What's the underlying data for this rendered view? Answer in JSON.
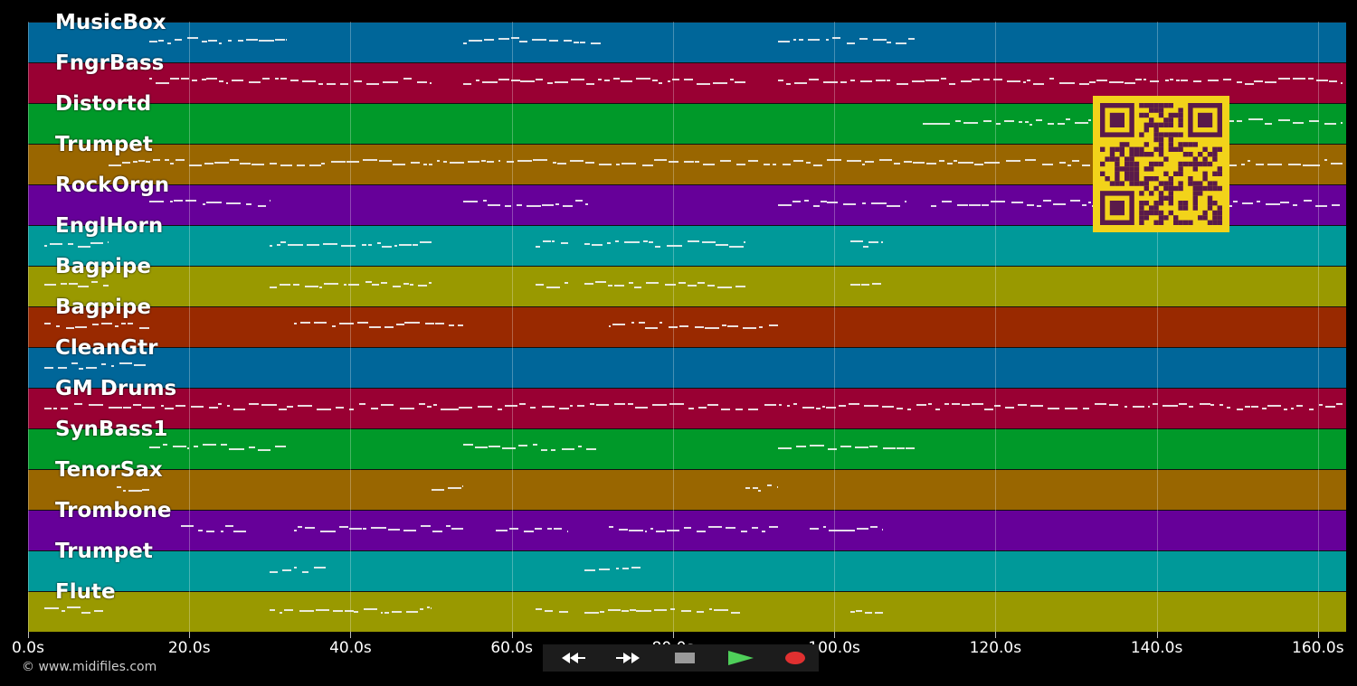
{
  "app": {
    "title": "MusicBox"
  },
  "tracks": [
    {
      "name": "MusicBox",
      "color": "#006699"
    },
    {
      "name": "FngrBass",
      "color": "#990033"
    },
    {
      "name": "Distortd",
      "color": "#009929"
    },
    {
      "name": "Trumpet",
      "color": "#996600"
    },
    {
      "name": "RockOrgn",
      "color": "#660099"
    },
    {
      "name": "EnglHorn",
      "color": "#009999"
    },
    {
      "name": "Bagpipe",
      "color": "#999900"
    },
    {
      "name": "Bagpipe",
      "color": "#992900"
    },
    {
      "name": "CleanGtr",
      "color": "#006699"
    },
    {
      "name": "GM Drums",
      "color": "#990033"
    },
    {
      "name": "SynBass1",
      "color": "#009929"
    },
    {
      "name": "TenorSax",
      "color": "#996600"
    },
    {
      "name": "Trombone",
      "color": "#660099"
    },
    {
      "name": "Trumpet",
      "color": "#009999"
    },
    {
      "name": "Flute",
      "color": "#999900"
    }
  ],
  "timeline": {
    "unit": "s",
    "max_seconds": 163.5,
    "ticks": [
      "0.0s",
      "20.0s",
      "40.0s",
      "60.0s",
      "80.0s",
      "100.0s",
      "120.0s",
      "140.0s",
      "160.0s"
    ],
    "tick_values": [
      0,
      20,
      40,
      60,
      80,
      100,
      120,
      140,
      160
    ]
  },
  "transport": {
    "buttons": [
      {
        "name": "rewind-button",
        "icon": "rewind-icon",
        "bg": "#111111"
      },
      {
        "name": "fast-forward-button",
        "icon": "fast-forward-icon",
        "bg": "#111111"
      },
      {
        "name": "stop-button",
        "icon": "stop-icon",
        "bg": "#3a3a3a"
      },
      {
        "name": "play-button",
        "icon": "play-icon",
        "bg": "#1e6b2a"
      },
      {
        "name": "record-button",
        "icon": "record-icon",
        "bg": "#4a1414"
      }
    ],
    "play_color": "#4fcf5a",
    "record_color": "#e03030",
    "stop_color": "#9a9a9a"
  },
  "qr_code": {
    "icon": "qr-code-icon",
    "bg": "#f2d31a",
    "fg": "#5a1a4a"
  },
  "copyright": "© www.midifiles.com"
}
